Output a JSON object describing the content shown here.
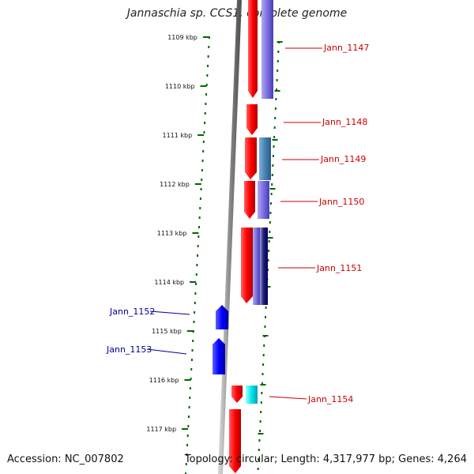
{
  "title": "Jannaschia sp. CCS1, complete genome",
  "accession_text": "Accession: NC_007802",
  "topology_text": "Topology: circular; Length: 4,317,977 bp; Genes: 4,264",
  "colors": {
    "forward_gene": "#ff0000",
    "reverse_gene": "#0000ff",
    "label_right": "#cc0000",
    "label_left": "#000099",
    "tick": "#006600",
    "backbone": "#888888"
  },
  "scale_labels": [
    "1109 kbp",
    "1110 kbp",
    "1111 kbp",
    "1112 kbp",
    "1113 kbp",
    "1114 kbp",
    "1115 kbp",
    "1116 kbp",
    "1117 kbp"
  ],
  "genes": [
    {
      "name": "Jann_1147",
      "side": "right"
    },
    {
      "name": "Jann_1148",
      "side": "right"
    },
    {
      "name": "Jann_1149",
      "side": "right"
    },
    {
      "name": "Jann_1150",
      "side": "right"
    },
    {
      "name": "Jann_1151",
      "side": "right"
    },
    {
      "name": "Jann_1152",
      "side": "left"
    },
    {
      "name": "Jann_1153",
      "side": "left"
    },
    {
      "name": "Jann_1154",
      "side": "right"
    }
  ]
}
